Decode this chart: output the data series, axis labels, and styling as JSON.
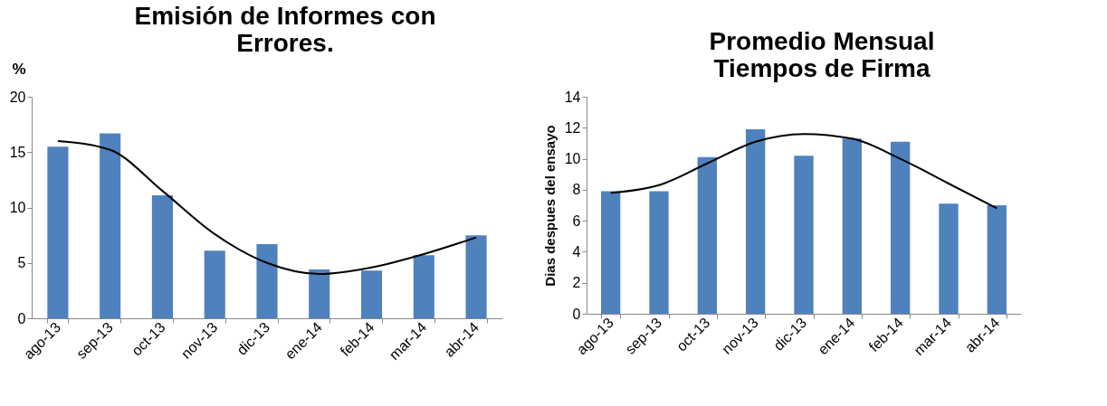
{
  "chart_data": [
    {
      "type": "bar",
      "title": "Emisión de Informes con\nErrores.",
      "ylabel": "%",
      "categories": [
        "ago-13",
        "sep-13",
        "oct-13",
        "nov-13",
        "dic-13",
        "ene-14",
        "feb-14",
        "mar-14",
        "abr-14"
      ],
      "series": [
        {
          "color": "#4f81bd",
          "values": [
            15.5,
            16.7,
            11.1,
            6.1,
            6.7,
            4.4,
            4.3,
            5.7,
            7.5
          ]
        },
        {
          "type": "line",
          "color": "#000000",
          "values": [
            16.0,
            15.2,
            11.5,
            7.6,
            5.0,
            4.0,
            4.6,
            5.8,
            7.3
          ]
        }
      ],
      "ylim": [
        0,
        20
      ],
      "yticks": [
        0,
        5,
        10,
        15,
        20
      ],
      "grid": false,
      "marker": "none",
      "line_style": "solid"
    },
    {
      "type": "bar",
      "title": "Promedio Mensual\nTiempos de Firma",
      "ylabel": "Dias despues del ensayo",
      "categories": [
        "ago-13",
        "sep-13",
        "oct-13",
        "nov-13",
        "dic-13",
        "ene-14",
        "feb-14",
        "mar-14",
        "abr-14"
      ],
      "series": [
        {
          "color": "#4f81bd",
          "values": [
            7.9,
            7.9,
            10.1,
            11.9,
            10.2,
            11.3,
            11.1,
            7.1,
            7.0
          ]
        },
        {
          "type": "line",
          "color": "#000000",
          "values": [
            7.8,
            8.3,
            9.7,
            11.1,
            11.6,
            11.3,
            10.0,
            8.4,
            6.8
          ]
        }
      ],
      "ylim": [
        0,
        14
      ],
      "yticks": [
        0,
        2,
        4,
        6,
        8,
        10,
        12,
        14
      ],
      "grid": false,
      "marker": "none",
      "line_style": "solid"
    }
  ]
}
